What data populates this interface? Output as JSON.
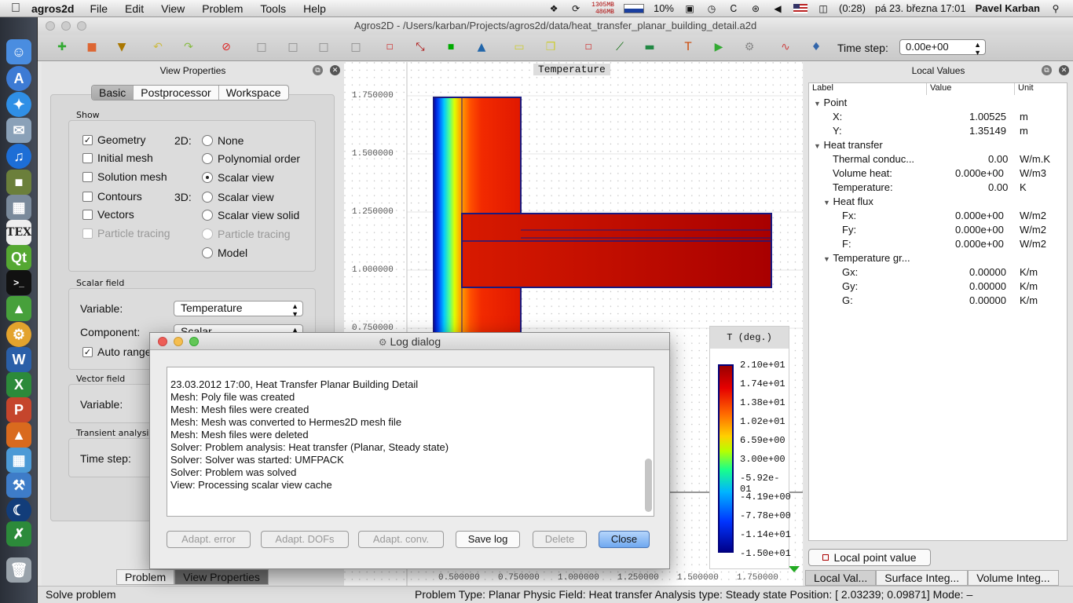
{
  "menubar": {
    "app_name": "agros2d",
    "menus": [
      "File",
      "Edit",
      "View",
      "Problem",
      "Tools",
      "Help"
    ],
    "memory_top": "1305MB",
    "memory_bottom": "486MB",
    "cpu": "10%",
    "battery": "(0:28)",
    "datetime": "pá 23. března  17:01",
    "user": "Pavel Karban"
  },
  "window": {
    "title": "Agros2D - /Users/karban/Projects/agros2d/data/heat_transfer_planar_building_detail.a2d"
  },
  "toolbar": {
    "time_step_label": "Time step:",
    "time_step_value": "0.00e+00"
  },
  "view_properties": {
    "title": "View Properties",
    "tabs": [
      "Basic",
      "Postprocessor",
      "Workspace"
    ],
    "show_group": "Show",
    "label_2d": "2D:",
    "label_3d": "3D:",
    "checkboxes": {
      "geometry": "Geometry",
      "initial_mesh": "Initial mesh",
      "solution_mesh": "Solution mesh",
      "contours": "Contours",
      "vectors": "Vectors",
      "particle_tracing": "Particle tracing"
    },
    "radios_2d": {
      "none": "None",
      "polynomial_order": "Polynomial order",
      "scalar_view": "Scalar view"
    },
    "radios_3d": {
      "scalar_view": "Scalar view",
      "scalar_view_solid": "Scalar view solid",
      "particle_tracing": "Particle tracing",
      "model": "Model"
    },
    "scalar_field_group": "Scalar field",
    "variable_label": "Variable:",
    "variable_value": "Temperature",
    "component_label": "Component:",
    "component_value": "Scalar",
    "auto_range": "Auto range",
    "vector_field_group": "Vector field",
    "vector_variable_label": "Variable:",
    "transient_group": "Transient analysis",
    "time_step_label": "Time step:"
  },
  "bottom_tabs": [
    "Problem",
    "View Properties"
  ],
  "canvas": {
    "title": "Temperature",
    "y_ticks": [
      "1.750000",
      "1.500000",
      "1.250000",
      "1.000000",
      "0.750000"
    ],
    "x_ticks": [
      "0.500000",
      "0.750000",
      "1.000000",
      "1.250000",
      "1.500000",
      "1.750000"
    ],
    "colorbar_title": "T (deg.)",
    "colorbar_labels": [
      "2.10e+01",
      "1.74e+01",
      "1.38e+01",
      "1.02e+01",
      "6.59e+00",
      "3.00e+00",
      "-5.92e-01",
      "-4.19e+00",
      "-7.78e+00",
      "-1.14e+01",
      "-1.50e+01"
    ]
  },
  "local_values": {
    "title": "Local Values",
    "headers": [
      "Label",
      "Value",
      "Unit"
    ],
    "point": {
      "label": "Point",
      "x_label": "X:",
      "x_value": "1.00525",
      "x_unit": "m",
      "y_label": "Y:",
      "y_value": "1.35149",
      "y_unit": "m"
    },
    "heat_transfer": {
      "label": "Heat transfer",
      "rows": [
        {
          "label": "Thermal conduc...",
          "value": "0.00",
          "unit": "W/m.K"
        },
        {
          "label": "Volume heat:",
          "value": "0.000e+00",
          "unit": "W/m3"
        },
        {
          "label": "Temperature:",
          "value": "0.00",
          "unit": "K"
        }
      ]
    },
    "heat_flux": {
      "label": "Heat flux",
      "rows": [
        {
          "label": "Fx:",
          "value": "0.000e+00",
          "unit": "W/m2"
        },
        {
          "label": "Fy:",
          "value": "0.000e+00",
          "unit": "W/m2"
        },
        {
          "label": "F:",
          "value": "0.000e+00",
          "unit": "W/m2"
        }
      ]
    },
    "temperature_gradient": {
      "label": "Temperature gr...",
      "rows": [
        {
          "label": "Gx:",
          "value": "0.00000",
          "unit": "K/m"
        },
        {
          "label": "Gy:",
          "value": "0.00000",
          "unit": "K/m"
        },
        {
          "label": "G:",
          "value": "0.00000",
          "unit": "K/m"
        }
      ]
    },
    "button": "Local point value",
    "tabs": [
      "Local Val...",
      "Surface Integ...",
      "Volume Integ..."
    ]
  },
  "status": {
    "left": "Solve problem",
    "right": "Problem Type: Planar  Physic Field: Heat transfer  Analysis type: Steady state  Position: [ 2.03239;  0.09871]  Mode: –"
  },
  "log_dialog": {
    "title": "Log dialog",
    "lines": [
      "23.03.2012 17:00, Heat Transfer Planar Building Detail",
      "Mesh: Poly file was created",
      "Mesh: Mesh files were created",
      "Mesh: Mesh was converted to Hermes2D mesh file",
      "Mesh: Mesh files were deleted",
      "Solver: Problem analysis: Heat transfer (Planar, Steady state)",
      "Solver: Solver was started: UMFPACK",
      "Solver: Problem was solved",
      "View: Processing scalar view cache"
    ],
    "buttons": {
      "adapt_error": "Adapt. error",
      "adapt_dofs": "Adapt. DOFs",
      "adapt_conv": "Adapt. conv.",
      "save_log": "Save log",
      "delete": "Delete",
      "close": "Close"
    }
  }
}
